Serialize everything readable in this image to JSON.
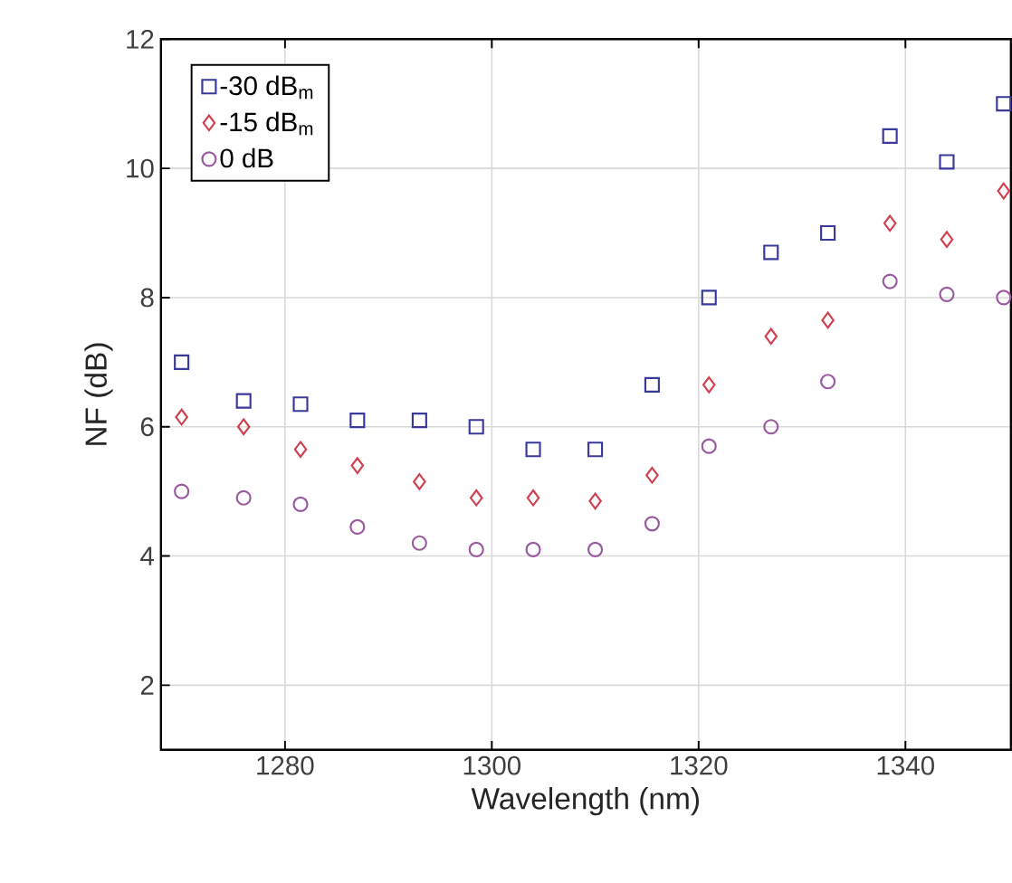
{
  "chart_data": {
    "type": "scatter",
    "xlabel": "Wavelength (nm)",
    "ylabel": "NF (dB)",
    "x": [
      1270,
      1276,
      1281.5,
      1287,
      1293,
      1298.5,
      1304,
      1310,
      1315.5,
      1321,
      1327,
      1332.5,
      1338.5,
      1344,
      1349.5
    ],
    "series": [
      {
        "name": "-30 dB$_{m}$",
        "color": "#3a3a9a",
        "marker": "square",
        "values": [
          7.0,
          6.4,
          6.35,
          6.1,
          6.1,
          6.0,
          5.65,
          5.65,
          6.65,
          8.0,
          8.7,
          9.0,
          10.5,
          10.1,
          11.0
        ]
      },
      {
        "name": "-15 dB$_{m}$",
        "color": "#d04050",
        "marker": "diamond",
        "values": [
          6.15,
          6.0,
          5.65,
          5.4,
          5.15,
          4.9,
          4.9,
          4.85,
          5.25,
          6.65,
          7.4,
          7.65,
          9.15,
          8.9,
          9.65
        ]
      },
      {
        "name": "0 dB",
        "color": "#9a5aa0",
        "marker": "circle",
        "values": [
          5.0,
          4.9,
          4.8,
          4.45,
          4.2,
          4.1,
          4.1,
          4.1,
          4.5,
          5.7,
          6.0,
          6.7,
          8.25,
          8.05,
          8.0
        ]
      }
    ],
    "xlim": [
      1268,
      1350.2
    ],
    "ylim": [
      1,
      12
    ],
    "xticks": [
      1280,
      1300,
      1320,
      1340
    ],
    "yticks": [
      2,
      4,
      6,
      8,
      10,
      12
    ],
    "grid": true,
    "legend": "top left"
  }
}
